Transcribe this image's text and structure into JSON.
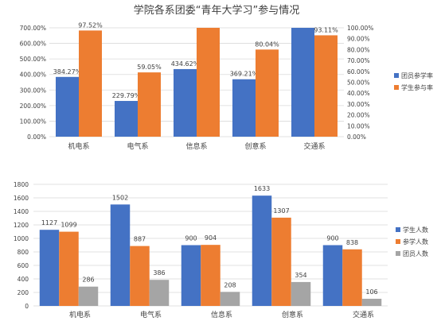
{
  "chart_data": [
    {
      "type": "bar",
      "title": "学院各系团委“青年大学习”参与情况",
      "categories": [
        "机电系",
        "电气系",
        "信息系",
        "创意系",
        "交通系"
      ],
      "series": [
        {
          "name": "团员参学率",
          "axis": "left",
          "color": "#4472C4",
          "values": [
            384.27,
            229.79,
            434.62,
            369.21,
            700.0
          ],
          "labels": [
            "384.27%",
            "229.79%",
            "434.62%",
            "369.21%",
            null
          ]
        },
        {
          "name": "学生参与率",
          "axis": "right",
          "color": "#ED7D31",
          "values": [
            97.52,
            59.05,
            100.0,
            80.04,
            93.11
          ],
          "labels": [
            "97.52%",
            "59.05%",
            null,
            "80.04%",
            "93.11%"
          ]
        }
      ],
      "y_left": {
        "min": 0,
        "max": 700,
        "step": 100,
        "ticks": [
          "0.00%",
          "100.00%",
          "200.00%",
          "300.00%",
          "400.00%",
          "500.00%",
          "600.00%",
          "700.00%"
        ]
      },
      "y_right": {
        "min": 0,
        "max": 100,
        "step": 10,
        "ticks": [
          "0.00%",
          "10.00%",
          "20.00%",
          "30.00%",
          "40.00%",
          "50.00%",
          "60.00%",
          "70.00%",
          "80.00%",
          "90.00%",
          "100.00%"
        ]
      },
      "grid": true,
      "legend": "right"
    },
    {
      "type": "bar",
      "title": "",
      "categories": [
        "机电系",
        "电气系",
        "信息系",
        "创意系",
        "交通系"
      ],
      "series": [
        {
          "name": "学生人数",
          "color": "#4472C4",
          "values": [
            1127,
            1502,
            900,
            1633,
            900
          ]
        },
        {
          "name": "参学人数",
          "color": "#ED7D31",
          "values": [
            1099,
            887,
            904,
            1307,
            838
          ]
        },
        {
          "name": "团员人数",
          "color": "#A5A5A5",
          "values": [
            286,
            386,
            208,
            354,
            106
          ]
        }
      ],
      "y": {
        "min": 0,
        "max": 1800,
        "step": 200,
        "ticks": [
          "0",
          "200",
          "400",
          "600",
          "800",
          "1000",
          "1200",
          "1400",
          "1600",
          "1800"
        ]
      },
      "grid": true,
      "legend": "right"
    }
  ]
}
